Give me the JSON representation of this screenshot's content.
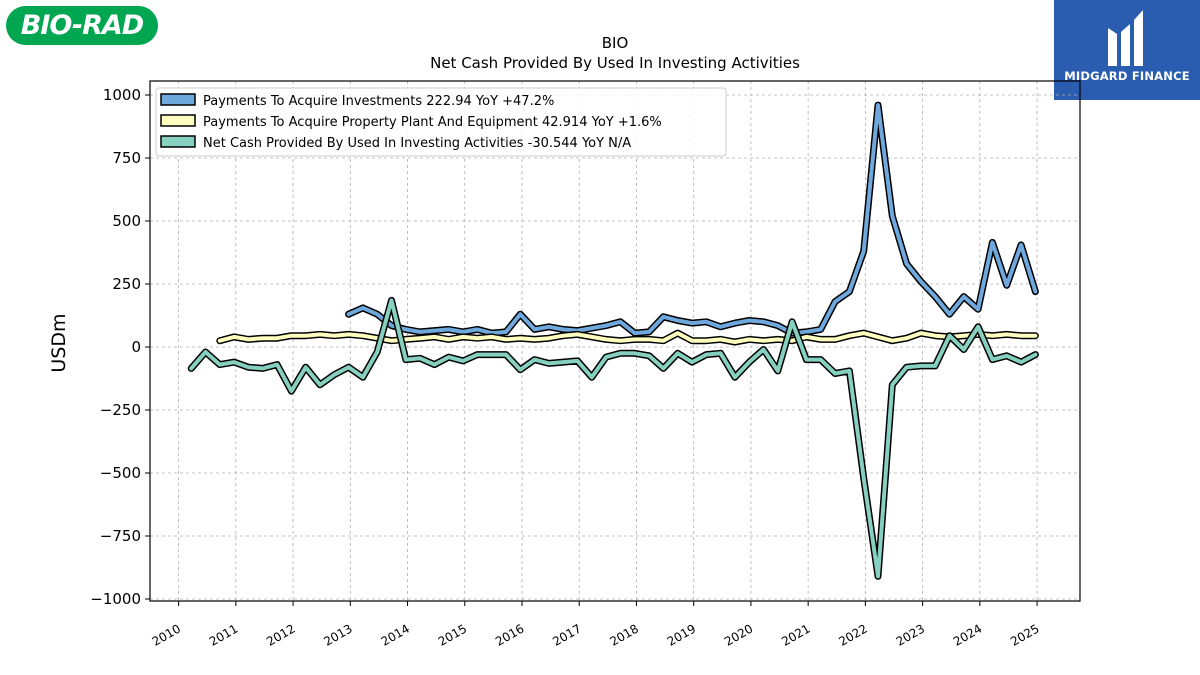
{
  "logos": {
    "left_text": "BIO-RAD",
    "right_text": "MIDGARD FINANCE"
  },
  "colors": {
    "investments": "#6fa8dc",
    "ppe": "#ffffbf",
    "net": "#86d0c0",
    "logo_left_bg": "#00a650",
    "logo_right_bg": "#2a5db0"
  },
  "chart_data": {
    "type": "line",
    "title": "BIO",
    "subtitle": "Net Cash Provided By Used In Investing Activities",
    "ylabel": "USDm",
    "xlabel": "",
    "ylim": [
      -1000,
      1000
    ],
    "xlim": [
      2009.5,
      2025.75
    ],
    "grid": true,
    "legend_position": "top-left",
    "x_ticks": [
      2010,
      2011,
      2012,
      2013,
      2014,
      2015,
      2016,
      2017,
      2018,
      2019,
      2020,
      2021,
      2022,
      2023,
      2024,
      2025
    ],
    "x_tick_labels": [
      "2010",
      "2011",
      "2012",
      "2013",
      "2014",
      "2015",
      "2016",
      "2017",
      "2018",
      "2019",
      "2020",
      "2021",
      "2022",
      "2023",
      "2024",
      "2025"
    ],
    "y_ticks": [
      -1000,
      -750,
      -500,
      -250,
      0,
      250,
      500,
      750,
      1000
    ],
    "y_tick_labels": [
      "−1000",
      "−750",
      "−500",
      "−250",
      "0",
      "250",
      "500",
      "750",
      "1000"
    ],
    "series": [
      {
        "name": "Payments To Acquire Investments",
        "legend": "Payments To Acquire Investments  222.94 YoY +47.2%",
        "color": "#6fa8dc",
        "x": [
          2012.97,
          2013.22,
          2013.47,
          2013.72,
          2013.97,
          2014.22,
          2014.47,
          2014.72,
          2014.97,
          2015.22,
          2015.47,
          2015.72,
          2015.97,
          2016.22,
          2016.47,
          2016.72,
          2016.97,
          2017.22,
          2017.47,
          2017.72,
          2017.97,
          2018.22,
          2018.47,
          2018.72,
          2018.97,
          2019.22,
          2019.47,
          2019.72,
          2019.97,
          2020.22,
          2020.47,
          2020.72,
          2020.97,
          2021.22,
          2021.47,
          2021.72,
          2021.97,
          2022.22,
          2022.47,
          2022.72,
          2022.97,
          2023.22,
          2023.47,
          2023.72,
          2023.97,
          2024.22,
          2024.47,
          2024.72,
          2024.97
        ],
        "y": [
          130,
          155,
          130,
          85,
          70,
          60,
          65,
          70,
          60,
          70,
          55,
          60,
          130,
          70,
          80,
          70,
          65,
          75,
          85,
          100,
          55,
          60,
          120,
          105,
          95,
          100,
          80,
          95,
          105,
          100,
          85,
          55,
          60,
          70,
          180,
          220,
          380,
          960,
          520,
          330,
          260,
          200,
          130,
          200,
          150,
          415,
          245,
          405,
          220
        ]
      },
      {
        "name": "Payments To Acquire Property Plant And Equipment",
        "legend": "Payments To Acquire Property Plant And Equipment  42.914 YoY +1.6%",
        "color": "#ffffbf",
        "x": [
          2010.72,
          2010.97,
          2011.22,
          2011.47,
          2011.72,
          2011.97,
          2012.22,
          2012.47,
          2012.72,
          2012.97,
          2013.22,
          2013.47,
          2013.72,
          2013.97,
          2014.22,
          2014.47,
          2014.72,
          2014.97,
          2015.22,
          2015.47,
          2015.72,
          2015.97,
          2016.22,
          2016.47,
          2016.72,
          2016.97,
          2017.22,
          2017.47,
          2017.72,
          2017.97,
          2018.22,
          2018.47,
          2018.72,
          2018.97,
          2019.22,
          2019.47,
          2019.72,
          2019.97,
          2020.22,
          2020.47,
          2020.72,
          2020.97,
          2021.22,
          2021.47,
          2021.72,
          2021.97,
          2022.22,
          2022.47,
          2022.72,
          2022.97,
          2023.22,
          2023.47,
          2023.72,
          2023.97,
          2024.22,
          2024.47,
          2024.72,
          2024.97
        ],
        "y": [
          25,
          40,
          30,
          35,
          35,
          45,
          45,
          50,
          45,
          50,
          45,
          35,
          25,
          30,
          35,
          40,
          30,
          40,
          35,
          40,
          30,
          35,
          30,
          35,
          45,
          50,
          40,
          30,
          25,
          30,
          30,
          25,
          55,
          25,
          25,
          30,
          20,
          30,
          25,
          30,
          25,
          40,
          30,
          30,
          45,
          55,
          40,
          25,
          35,
          55,
          45,
          40,
          45,
          50,
          45,
          50,
          45,
          45
        ]
      },
      {
        "name": "Net Cash Provided By Used In Investing Activities",
        "legend": "Net Cash Provided By Used In Investing Activities  -30.544 YoY N/A",
        "color": "#86d0c0",
        "x": [
          2010.22,
          2010.47,
          2010.72,
          2010.97,
          2011.22,
          2011.47,
          2011.72,
          2011.97,
          2012.22,
          2012.47,
          2012.72,
          2012.97,
          2013.22,
          2013.47,
          2013.72,
          2013.97,
          2014.22,
          2014.47,
          2014.72,
          2014.97,
          2015.22,
          2015.47,
          2015.72,
          2015.97,
          2016.22,
          2016.47,
          2016.72,
          2016.97,
          2017.22,
          2017.47,
          2017.72,
          2017.97,
          2018.22,
          2018.47,
          2018.72,
          2018.97,
          2019.22,
          2019.47,
          2019.72,
          2019.97,
          2020.22,
          2020.47,
          2020.72,
          2020.97,
          2021.22,
          2021.47,
          2021.72,
          2021.97,
          2022.22,
          2022.47,
          2022.72,
          2022.97,
          2023.22,
          2023.47,
          2023.72,
          2023.97,
          2024.22,
          2024.47,
          2024.72,
          2024.97
        ],
        "y": [
          -85,
          -20,
          -70,
          -60,
          -80,
          -85,
          -70,
          -175,
          -80,
          -150,
          -110,
          -80,
          -120,
          -20,
          185,
          -50,
          -45,
          -70,
          -40,
          -55,
          -30,
          -30,
          -30,
          -90,
          -50,
          -65,
          -60,
          -55,
          -120,
          -40,
          -25,
          -25,
          -35,
          -85,
          -25,
          -60,
          -30,
          -25,
          -120,
          -60,
          -10,
          -95,
          100,
          -50,
          -50,
          -105,
          -95,
          -520,
          -910,
          -150,
          -80,
          -75,
          -75,
          45,
          -10,
          80,
          -50,
          -35,
          -60,
          -30
        ]
      }
    ]
  }
}
